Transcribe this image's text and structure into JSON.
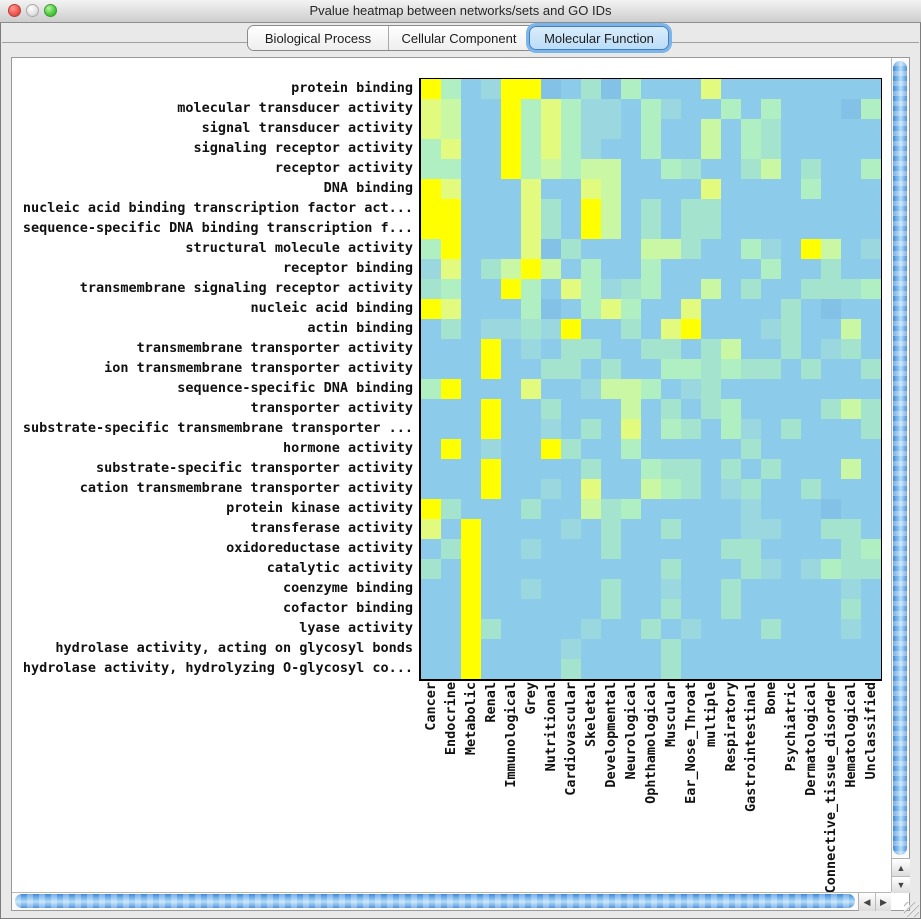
{
  "window": {
    "title": "Pvalue heatmap between networks/sets and GO IDs",
    "traffic_light_colors": {
      "close": "#ee544e",
      "minimize": "#dddddd",
      "zoom": "#4bc93c"
    }
  },
  "tabs": [
    {
      "label": "Biological Process",
      "selected": false
    },
    {
      "label": "Cellular Component",
      "selected": false
    },
    {
      "label": "Molecular Function",
      "selected": true
    }
  ],
  "chart_data": {
    "type": "heatmap",
    "title": "",
    "rows": [
      "protein binding",
      "molecular transducer activity",
      "signal transducer activity",
      "signaling receptor activity",
      "receptor activity",
      "DNA binding",
      "nucleic acid binding transcription factor act...",
      "sequence-specific DNA binding transcription f...",
      "structural molecule activity",
      "receptor binding",
      "transmembrane signaling receptor activity",
      "nucleic acid binding",
      "actin binding",
      "transmembrane transporter activity",
      "ion transmembrane transporter activity",
      "sequence-specific DNA binding",
      "transporter activity",
      "substrate-specific transmembrane transporter ...",
      "hormone activity",
      "substrate-specific transporter activity",
      "cation transmembrane transporter activity",
      "protein kinase activity",
      "transferase activity",
      "oxidoreductase activity",
      "catalytic activity",
      "coenzyme binding",
      "cofactor binding",
      "lyase activity",
      "hydrolase activity, acting on glycosyl bonds",
      "hydrolase activity, hydrolyzing O-glycosyl co..."
    ],
    "columns": [
      "Cancer",
      "Endocrine",
      "Metabolic",
      "Renal",
      "Immunological",
      "Grey",
      "Nutritional",
      "Cardiovascular",
      "Skeletal",
      "Developmental",
      "Neurological",
      "Ophthamological",
      "Muscular",
      "Ear_Nose_Throat",
      "multiple",
      "Respiratory",
      "Gastrointestinal",
      "Bone",
      "Psychiatric",
      "Dermatological",
      "Connective_tissue_disorder",
      "Hematological",
      "Unclassified"
    ],
    "palette": {
      "Y": "#FFFF00",
      "L": "#E2FA7E",
      "M": "#C9F7A4",
      "G": "#B0EFC1",
      "T": "#A4E4CF",
      "C": "#9BD7DE",
      "B": "#8DCBEB",
      "D": "#83C2E6"
    },
    "palette_legend": "Y=yellow(lowest pvalue) L=yellow-green M=light green G=mint T=pale teal C=teal-blue B=base light blue D=darker blue(highest)",
    "grid": [
      "Y G B C Y Y D B T D G B B B L B B B B B B B B",
      "L M B B Y G L G C C B G C B B G B G B B B D G",
      "L M B B Y G L G C C B G B B M B G T B B B B B",
      "G L B B Y G L G C B B G B B M B G T B B B B B",
      "G G B B Y G M G M M B B G T B B T M B T B B G",
      "Y L B B B L B B L M B B B B L B B B B G B B B",
      "Y Y B B B L T B Y M B T B T T B B B B B B B B",
      "Y Y B B B L T B Y M B T B T T B B B B B B B B",
      "G Y B B B L D T B B B M M T B B G C B Y M B C",
      "C L B T M Y M B G B B G B B B B B G B B T B B",
      "T G B B Y G B L G C T G B B M B T B B T T T G",
      "Y L B B B G D B G L G B B L B B B B T B D B B",
      "B T B C C T C Y B B T B L Y B B B C T B B M B",
      "B B B Y B C B T T B B T T B T M B B T B C T B",
      "B B B Y B B T T B T B B G G T G T T B T B B T",
      "G Y B B B L B B C M M G B C T B B B B B B B B",
      "B B B Y B B T B B B M B T B T G B B B B T M T",
      "B B B Y B B C B T B L B G T B G C B T B B B T",
      "B Y B C B B Y T B B G B B B B B T B B B B B B",
      "B B B Y B B B B T B B G T T B T B T B B B M B",
      "B B B Y B B C B L B B M G T B C T B B T B B B",
      "Y T B B B T B B M T G B B B B B C B B B D B B",
      "L B Y B B B B C B T B B T B B B C C B B T T B",
      "B T Y B B C B B B T B B B B B T T B B B B T G",
      "T B Y B B B B B B B B B T B B B T C B C G T T",
      "B B Y B B C B B B T B B C B B T B B B B B C B",
      "B B Y B B B B B B T B B T B B T B B B B B T B",
      "B B Y T B B B B C B B T B C B B B T B B B C B",
      "B B Y B B B B C B B B B T B B B B B B B B B B",
      "B B Y B B B B T B B B B T B B B B B B B B B B"
    ],
    "cell_size_px": 20,
    "axis_color": "#000000"
  },
  "scrollbars": {
    "up_arrow": "▲",
    "down_arrow": "▼",
    "left_arrow": "◀",
    "right_arrow": "▶"
  }
}
